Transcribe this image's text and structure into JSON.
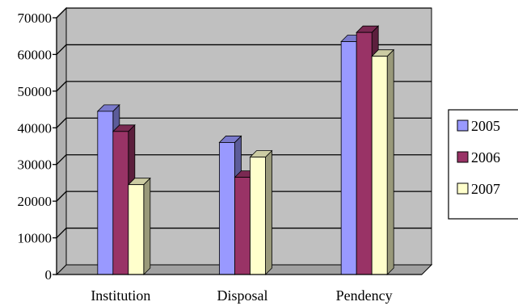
{
  "chart_data": {
    "type": "bar",
    "categories": [
      "Institution",
      "Disposal",
      "Pendency"
    ],
    "series": [
      {
        "name": "2005",
        "values": [
          44500,
          36000,
          63500
        ],
        "color": "#9999ff"
      },
      {
        "name": "2006",
        "values": [
          39000,
          26500,
          66000
        ],
        "color": "#993366"
      },
      {
        "name": "2007",
        "values": [
          24500,
          32000,
          59500
        ],
        "color": "#ffffcc"
      }
    ],
    "ylim": [
      0,
      70000
    ],
    "yticks": [
      "0",
      "10000",
      "20000",
      "30000",
      "40000",
      "50000",
      "60000",
      "70000"
    ],
    "grid": true,
    "legend_position": "right",
    "plot_background": "#c0c0c0",
    "title": "",
    "xlabel": "",
    "ylabel": ""
  }
}
